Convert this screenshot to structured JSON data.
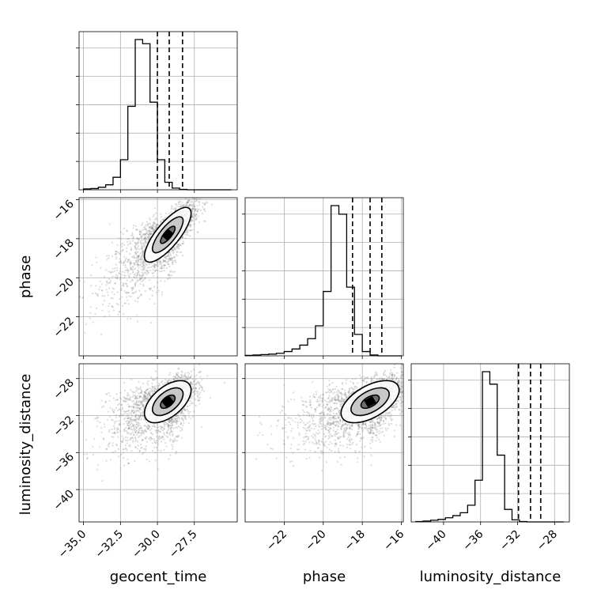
{
  "chart_data": {
    "type": "corner",
    "parameters": [
      "geocent_time",
      "phase",
      "luminosity_distance"
    ],
    "grid": true,
    "ranges": {
      "geocent_time": [
        -35.3,
        -24.6
      ],
      "phase": [
        -24.0,
        -15.9
      ],
      "luminosity_distance": [
        -43.5,
        -26.4
      ]
    },
    "ticks": {
      "geocent_time": {
        "values": [
          -35.0,
          -32.5,
          -30.0,
          -27.5
        ],
        "labels": [
          "−35.0",
          "−32.5",
          "−30.0",
          "−27.5"
        ]
      },
      "phase": {
        "values": [
          -22,
          -20,
          -18,
          -16
        ],
        "labels": [
          "−22",
          "−20",
          "−18",
          "−16"
        ]
      },
      "luminosity_distance": {
        "values": [
          -40,
          -36,
          -32,
          -28
        ],
        "labels": [
          "−40",
          "−36",
          "−32",
          "−28"
        ]
      }
    },
    "quantiles": {
      "geocent_time": [
        -30.0,
        -29.2,
        -28.3
      ],
      "phase": [
        -18.5,
        -17.6,
        -17.0
      ],
      "luminosity_distance": [
        -31.9,
        -30.6,
        -29.5
      ]
    },
    "histograms": {
      "geocent_time": {
        "edges_start": -35.0,
        "bin_width": 0.5,
        "counts": [
          2,
          3,
          6,
          12,
          30,
          72,
          200,
          360,
          350,
          210,
          72,
          18,
          4,
          1,
          0,
          0,
          0,
          0,
          0,
          0
        ]
      },
      "phase": {
        "edges_start": -24.0,
        "bin_width": 0.4,
        "counts": [
          1,
          2,
          3,
          4,
          6,
          10,
          16,
          25,
          40,
          70,
          150,
          350,
          330,
          160,
          50,
          10,
          2,
          0,
          0,
          0
        ]
      },
      "luminosity_distance": {
        "edges_start": -43.0,
        "bin_width": 0.8,
        "counts": [
          1,
          2,
          4,
          6,
          10,
          15,
          22,
          40,
          100,
          360,
          330,
          160,
          30,
          5,
          1,
          0,
          0,
          0,
          0,
          0
        ]
      }
    },
    "contours": {
      "phase_vs_geocent_time": {
        "center": [
          -29.3,
          -17.8
        ],
        "sd": [
          0.9,
          0.8
        ],
        "corr": 0.78
      },
      "luminosity_distance_vs_geocent_time": {
        "center": [
          -29.3,
          -30.5
        ],
        "sd": [
          0.9,
          1.3
        ],
        "corr": 0.55
      },
      "luminosity_distance_vs_phase": {
        "center": [
          -17.6,
          -30.5
        ],
        "sd": [
          0.85,
          1.3
        ],
        "corr": 0.55
      }
    },
    "colors": {
      "samples": "#808080",
      "lines": "#000000",
      "grid": "#b0b0b0"
    }
  }
}
